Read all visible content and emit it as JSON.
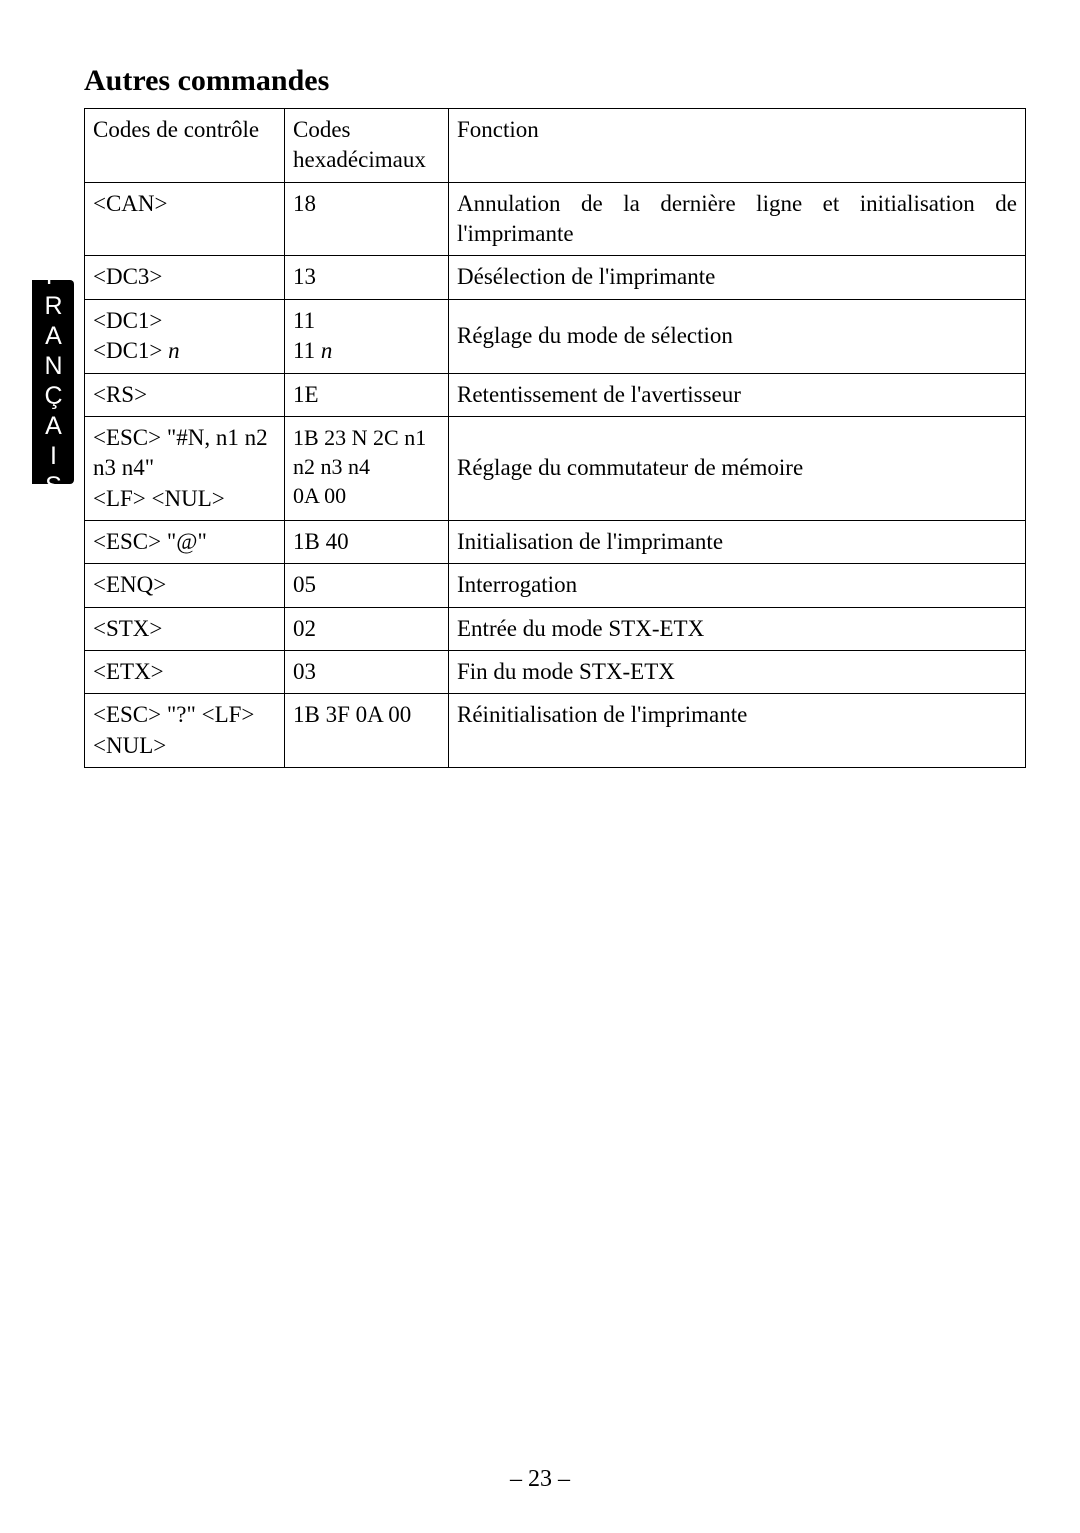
{
  "side_tab": "FRANÇAIS",
  "heading": "Autres commandes",
  "page_number": "– 23 –",
  "table": {
    "header": {
      "col1": "Codes de contrôle",
      "col2": "Codes hexadécimaux",
      "col3": "Fonction"
    },
    "rows": [
      {
        "c1": "<CAN>",
        "c2": "18",
        "c3": "Annulation de la dernière ligne et initialisation de l'imprimante"
      },
      {
        "c1": "<DC3>",
        "c2": "13",
        "c3": "Désélection de l'imprimante"
      },
      {
        "c1_a": "<DC1>",
        "c1_b_pre": "<DC1> ",
        "c1_b_it": "n",
        "c2_a": "11",
        "c2_b_pre": "11 ",
        "c2_b_it": "n",
        "c3": "Réglage du mode de sélection"
      },
      {
        "c1": "<RS>",
        "c2": "1E",
        "c3": "Retentissement de l'avertisseur"
      },
      {
        "c1_a": "<ESC> \"#N, n1 n2 n3 n4\"",
        "c1_b": "<LF> <NUL>",
        "c2_a": "1B 23 N 2C n1 n2 n3 n4",
        "c2_b": "0A 00",
        "c3": "Réglage du commutateur de mémoire"
      },
      {
        "c1": "<ESC> \"@\"",
        "c2": "1B 40",
        "c3": "Initialisation de l'imprimante"
      },
      {
        "c1": "<ENQ>",
        "c2": "05",
        "c3": "Interrogation"
      },
      {
        "c1": "<STX>",
        "c2": "02",
        "c3": "Entrée du mode STX-ETX"
      },
      {
        "c1": "<ETX>",
        "c2": "03",
        "c3": "Fin du mode STX-ETX"
      },
      {
        "c1": "<ESC> \"?\" <LF> <NUL>",
        "c2": "1B 3F 0A 00",
        "c3": "Réinitialisation de l'imprimante"
      }
    ]
  }
}
